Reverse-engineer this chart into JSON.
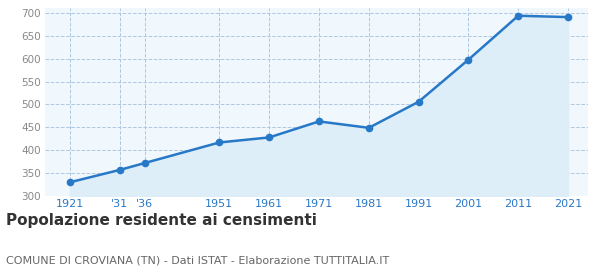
{
  "years": [
    1921,
    1931,
    1936,
    1951,
    1961,
    1971,
    1981,
    1991,
    2001,
    2011,
    2021
  ],
  "population": [
    330,
    357,
    372,
    417,
    428,
    463,
    449,
    506,
    598,
    694,
    691
  ],
  "x_tick_labels": [
    "1921",
    "'31",
    "'36",
    "1951",
    "1961",
    "1971",
    "1981",
    "1991",
    "2001",
    "2011",
    "2021"
  ],
  "ylim": [
    300,
    710
  ],
  "yticks": [
    300,
    350,
    400,
    450,
    500,
    550,
    600,
    650,
    700
  ],
  "line_color": "#2878c8",
  "fill_color": "#ddeef8",
  "marker": "o",
  "marker_size": 4.5,
  "line_width": 1.8,
  "grid_color": "#b0c8e0",
  "grid_style": "--",
  "title": "Popolazione residente ai censimenti",
  "title_fontsize": 11,
  "subtitle": "COMUNE DI CROVIANA (TN) - Dati ISTAT - Elaborazione TUTTITALIA.IT",
  "subtitle_fontsize": 8,
  "tick_label_color_x": "#2878c8",
  "tick_label_color_y": "#888888",
  "bg_color": "#ffffff",
  "plot_bg_color": "#f0f7fd",
  "xlim_left": 1916,
  "xlim_right": 2025
}
